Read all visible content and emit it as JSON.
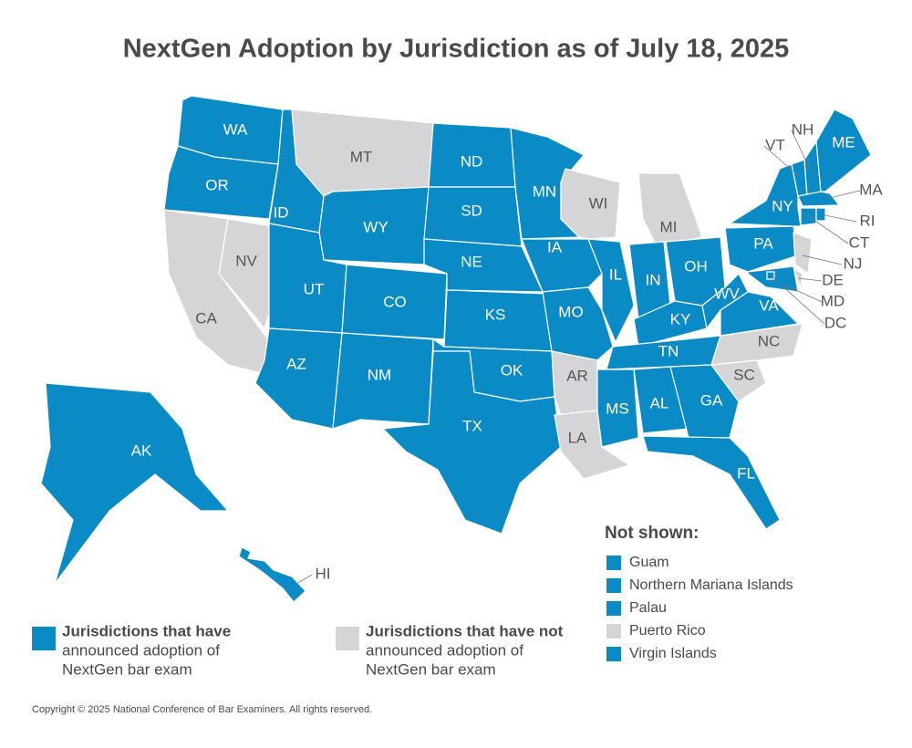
{
  "title": "NextGen Adoption by Jurisdiction as of July 18, 2025",
  "colors": {
    "adopted": "#0a8bc6",
    "not_adopted": "#d5d5d7"
  },
  "states": [
    {
      "label": "WA",
      "adopted": true
    },
    {
      "label": "OR",
      "adopted": true
    },
    {
      "label": "CA",
      "adopted": false
    },
    {
      "label": "NV",
      "adopted": false
    },
    {
      "label": "ID",
      "adopted": true
    },
    {
      "label": "MT",
      "adopted": false
    },
    {
      "label": "WY",
      "adopted": true
    },
    {
      "label": "UT",
      "adopted": true
    },
    {
      "label": "CO",
      "adopted": true
    },
    {
      "label": "AZ",
      "adopted": true
    },
    {
      "label": "NM",
      "adopted": true
    },
    {
      "label": "ND",
      "adopted": true
    },
    {
      "label": "SD",
      "adopted": true
    },
    {
      "label": "NE",
      "adopted": true
    },
    {
      "label": "KS",
      "adopted": true
    },
    {
      "label": "OK",
      "adopted": true
    },
    {
      "label": "TX",
      "adopted": true
    },
    {
      "label": "MN",
      "adopted": true
    },
    {
      "label": "IA",
      "adopted": true
    },
    {
      "label": "MO",
      "adopted": true
    },
    {
      "label": "AR",
      "adopted": false
    },
    {
      "label": "LA",
      "adopted": false
    },
    {
      "label": "WI",
      "adopted": false
    },
    {
      "label": "IL",
      "adopted": true
    },
    {
      "label": "MI",
      "adopted": false
    },
    {
      "label": "IN",
      "adopted": true
    },
    {
      "label": "OH",
      "adopted": true
    },
    {
      "label": "KY",
      "adopted": true
    },
    {
      "label": "TN",
      "adopted": true
    },
    {
      "label": "MS",
      "adopted": true
    },
    {
      "label": "AL",
      "adopted": true
    },
    {
      "label": "GA",
      "adopted": true
    },
    {
      "label": "FL",
      "adopted": true
    },
    {
      "label": "SC",
      "adopted": false
    },
    {
      "label": "NC",
      "adopted": false
    },
    {
      "label": "VA",
      "adopted": true
    },
    {
      "label": "WV",
      "adopted": true
    },
    {
      "label": "PA",
      "adopted": true
    },
    {
      "label": "NY",
      "adopted": true
    },
    {
      "label": "VT",
      "adopted": true
    },
    {
      "label": "NH",
      "adopted": true
    },
    {
      "label": "ME",
      "adopted": true
    },
    {
      "label": "MA",
      "adopted": true
    },
    {
      "label": "CT",
      "adopted": true
    },
    {
      "label": "RI",
      "adopted": true
    },
    {
      "label": "NJ",
      "adopted": false
    },
    {
      "label": "DE",
      "adopted": false
    },
    {
      "label": "MD",
      "adopted": true
    },
    {
      "label": "DC",
      "adopted": true
    },
    {
      "label": "AK",
      "adopted": true
    },
    {
      "label": "HI",
      "adopted": true
    }
  ],
  "legend": [
    {
      "lines": [
        "Jurisdictions that have",
        "announced adoption of",
        "NextGen bar exam"
      ],
      "adopted": true
    },
    {
      "lines": [
        "Jurisdictions that have not",
        "announced adoption of",
        "NextGen bar exam"
      ],
      "adopted": false
    }
  ],
  "not_shown": {
    "heading": "Not shown:",
    "items": [
      {
        "label": "Guam",
        "adopted": true
      },
      {
        "label": "Northern Mariana Islands",
        "adopted": true
      },
      {
        "label": "Palau",
        "adopted": true
      },
      {
        "label": "Puerto Rico",
        "adopted": false
      },
      {
        "label": "Virgin Islands",
        "adopted": true
      }
    ]
  },
  "copyright": "Copyright © 2025 National Conference of Bar Examiners. All rights reserved."
}
